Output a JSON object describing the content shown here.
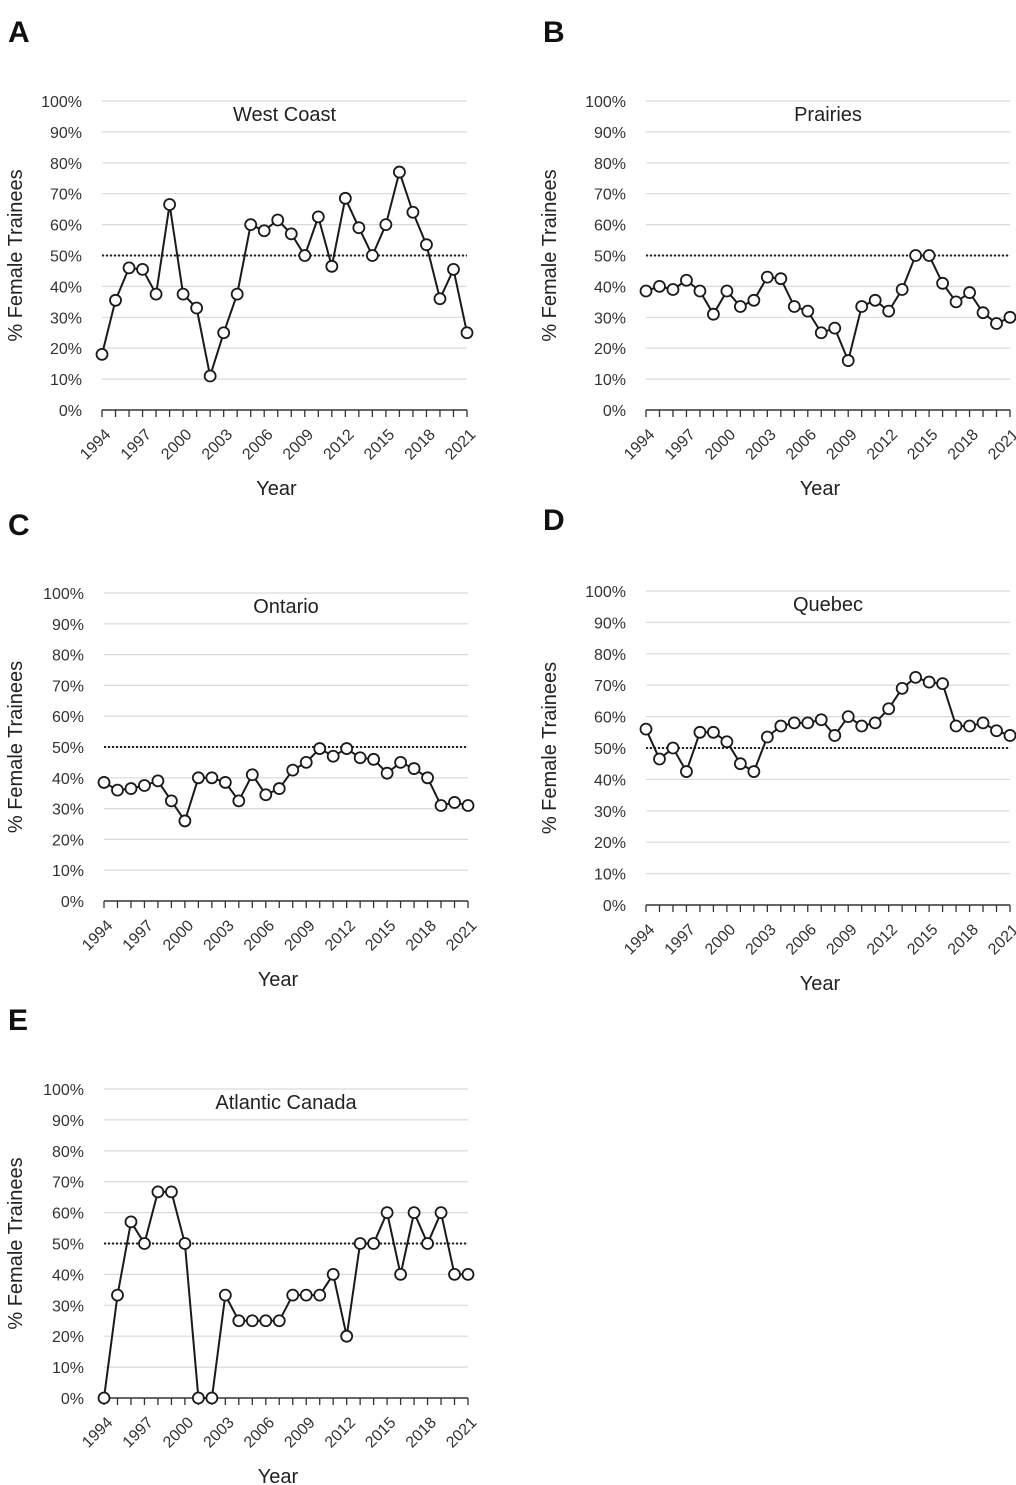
{
  "figure": {
    "panels": [
      {
        "letter": "A",
        "title": "West Coast"
      },
      {
        "letter": "B",
        "title": "Prairies"
      },
      {
        "letter": "C",
        "title": "Ontario"
      },
      {
        "letter": "D",
        "title": "Quebec"
      },
      {
        "letter": "E",
        "title": "Atlantic Canada"
      }
    ]
  },
  "chart_data": [
    {
      "type": "line",
      "panel": "A",
      "title": "West Coast",
      "xlabel": "Year",
      "ylabel": "% Female Trainees",
      "ylim": [
        0,
        100
      ],
      "yticks": [
        "0%",
        "10%",
        "20%",
        "30%",
        "40%",
        "50%",
        "60%",
        "70%",
        "80%",
        "90%",
        "100%"
      ],
      "xticks": [
        "1994",
        "1997",
        "2000",
        "2003",
        "2006",
        "2009",
        "2012",
        "2015",
        "2018",
        "2021"
      ],
      "reference_line": 50,
      "grid": "horizontal",
      "x": [
        1994,
        1995,
        1996,
        1997,
        1998,
        1999,
        2000,
        2001,
        2002,
        2003,
        2004,
        2005,
        2006,
        2007,
        2008,
        2009,
        2010,
        2011,
        2012,
        2013,
        2014,
        2015,
        2016,
        2017,
        2018,
        2019,
        2020,
        2021
      ],
      "values": [
        18,
        35.5,
        46,
        45.5,
        37.5,
        66.5,
        37.5,
        33,
        11,
        25,
        37.5,
        60,
        58,
        61.5,
        57,
        50,
        62.5,
        46.5,
        68.5,
        59,
        50,
        60,
        77,
        64,
        53.5,
        36,
        45.5,
        25
      ]
    },
    {
      "type": "line",
      "panel": "B",
      "title": "Prairies",
      "xlabel": "Year",
      "ylabel": "% Female Trainees",
      "ylim": [
        0,
        100
      ],
      "yticks": [
        "0%",
        "10%",
        "20%",
        "30%",
        "40%",
        "50%",
        "60%",
        "70%",
        "80%",
        "90%",
        "100%"
      ],
      "xticks": [
        "1994",
        "1997",
        "2000",
        "2003",
        "2006",
        "2009",
        "2012",
        "2015",
        "2018",
        "2021"
      ],
      "reference_line": 50,
      "grid": "horizontal",
      "x": [
        1994,
        1995,
        1996,
        1997,
        1998,
        1999,
        2000,
        2001,
        2002,
        2003,
        2004,
        2005,
        2006,
        2007,
        2008,
        2009,
        2010,
        2011,
        2012,
        2013,
        2014,
        2015,
        2016,
        2017,
        2018,
        2019,
        2020,
        2021
      ],
      "values": [
        38.5,
        40,
        39,
        42,
        38.5,
        31,
        38.5,
        33.5,
        35.5,
        43,
        42.5,
        33.5,
        32,
        25,
        26.5,
        16,
        33.5,
        35.5,
        32,
        39,
        50,
        50,
        41,
        35,
        38,
        31.5,
        28,
        30
      ]
    },
    {
      "type": "line",
      "panel": "C",
      "title": "Ontario",
      "xlabel": "Year",
      "ylabel": "% Female Trainees",
      "ylim": [
        0,
        100
      ],
      "yticks": [
        "0%",
        "10%",
        "20%",
        "30%",
        "40%",
        "50%",
        "60%",
        "70%",
        "80%",
        "90%",
        "100%"
      ],
      "xticks": [
        "1994",
        "1997",
        "2000",
        "2003",
        "2006",
        "2009",
        "2012",
        "2015",
        "2018",
        "2021"
      ],
      "reference_line": 50,
      "grid": "horizontal",
      "x": [
        1994,
        1995,
        1996,
        1997,
        1998,
        1999,
        2000,
        2001,
        2002,
        2003,
        2004,
        2005,
        2006,
        2007,
        2008,
        2009,
        2010,
        2011,
        2012,
        2013,
        2014,
        2015,
        2016,
        2017,
        2018,
        2019,
        2020,
        2021
      ],
      "values": [
        38.5,
        36,
        36.5,
        37.5,
        39,
        32.5,
        26,
        40,
        40,
        38.5,
        32.5,
        41,
        34.5,
        36.5,
        42.5,
        45,
        49.5,
        47,
        49.5,
        46.5,
        46,
        41.5,
        45,
        43,
        40,
        31,
        32,
        31
      ]
    },
    {
      "type": "line",
      "panel": "D",
      "title": "Quebec",
      "xlabel": "Year",
      "ylabel": "% Female Trainees",
      "ylim": [
        0,
        100
      ],
      "yticks": [
        "0%",
        "10%",
        "20%",
        "30%",
        "40%",
        "50%",
        "60%",
        "70%",
        "80%",
        "90%",
        "100%"
      ],
      "xticks": [
        "1994",
        "1997",
        "2000",
        "2003",
        "2006",
        "2009",
        "2012",
        "2015",
        "2018",
        "2021"
      ],
      "reference_line": 50,
      "grid": "horizontal",
      "x": [
        1994,
        1995,
        1996,
        1997,
        1998,
        1999,
        2000,
        2001,
        2002,
        2003,
        2004,
        2005,
        2006,
        2007,
        2008,
        2009,
        2010,
        2011,
        2012,
        2013,
        2014,
        2015,
        2016,
        2017,
        2018,
        2019,
        2020,
        2021
      ],
      "values": [
        56,
        46.5,
        50,
        42.5,
        55,
        55,
        52,
        45,
        42.5,
        53.5,
        57,
        58,
        58,
        59,
        54,
        60,
        57,
        58,
        62.5,
        69,
        72.5,
        71,
        70.5,
        57,
        57,
        58,
        55.5,
        54
      ]
    },
    {
      "type": "line",
      "panel": "E",
      "title": "Atlantic Canada",
      "xlabel": "Year",
      "ylabel": "% Female Trainees",
      "ylim": [
        0,
        100
      ],
      "yticks": [
        "0%",
        "10%",
        "20%",
        "30%",
        "40%",
        "50%",
        "60%",
        "70%",
        "80%",
        "90%",
        "100%"
      ],
      "xticks": [
        "1994",
        "1997",
        "2000",
        "2003",
        "2006",
        "2009",
        "2012",
        "2015",
        "2018",
        "2021"
      ],
      "reference_line": 50,
      "grid": "horizontal",
      "x": [
        1994,
        1995,
        1996,
        1997,
        1998,
        1999,
        2000,
        2001,
        2002,
        2003,
        2004,
        2005,
        2006,
        2007,
        2008,
        2009,
        2010,
        2011,
        2012,
        2013,
        2014,
        2015,
        2016,
        2017,
        2018,
        2019,
        2020,
        2021
      ],
      "values": [
        0,
        33.3,
        57,
        50,
        66.7,
        66.7,
        50,
        0,
        0,
        33.3,
        25,
        25,
        25,
        25,
        33.3,
        33.3,
        33.3,
        40,
        20,
        50,
        50,
        60,
        40,
        60,
        50,
        60,
        40,
        40
      ]
    }
  ]
}
